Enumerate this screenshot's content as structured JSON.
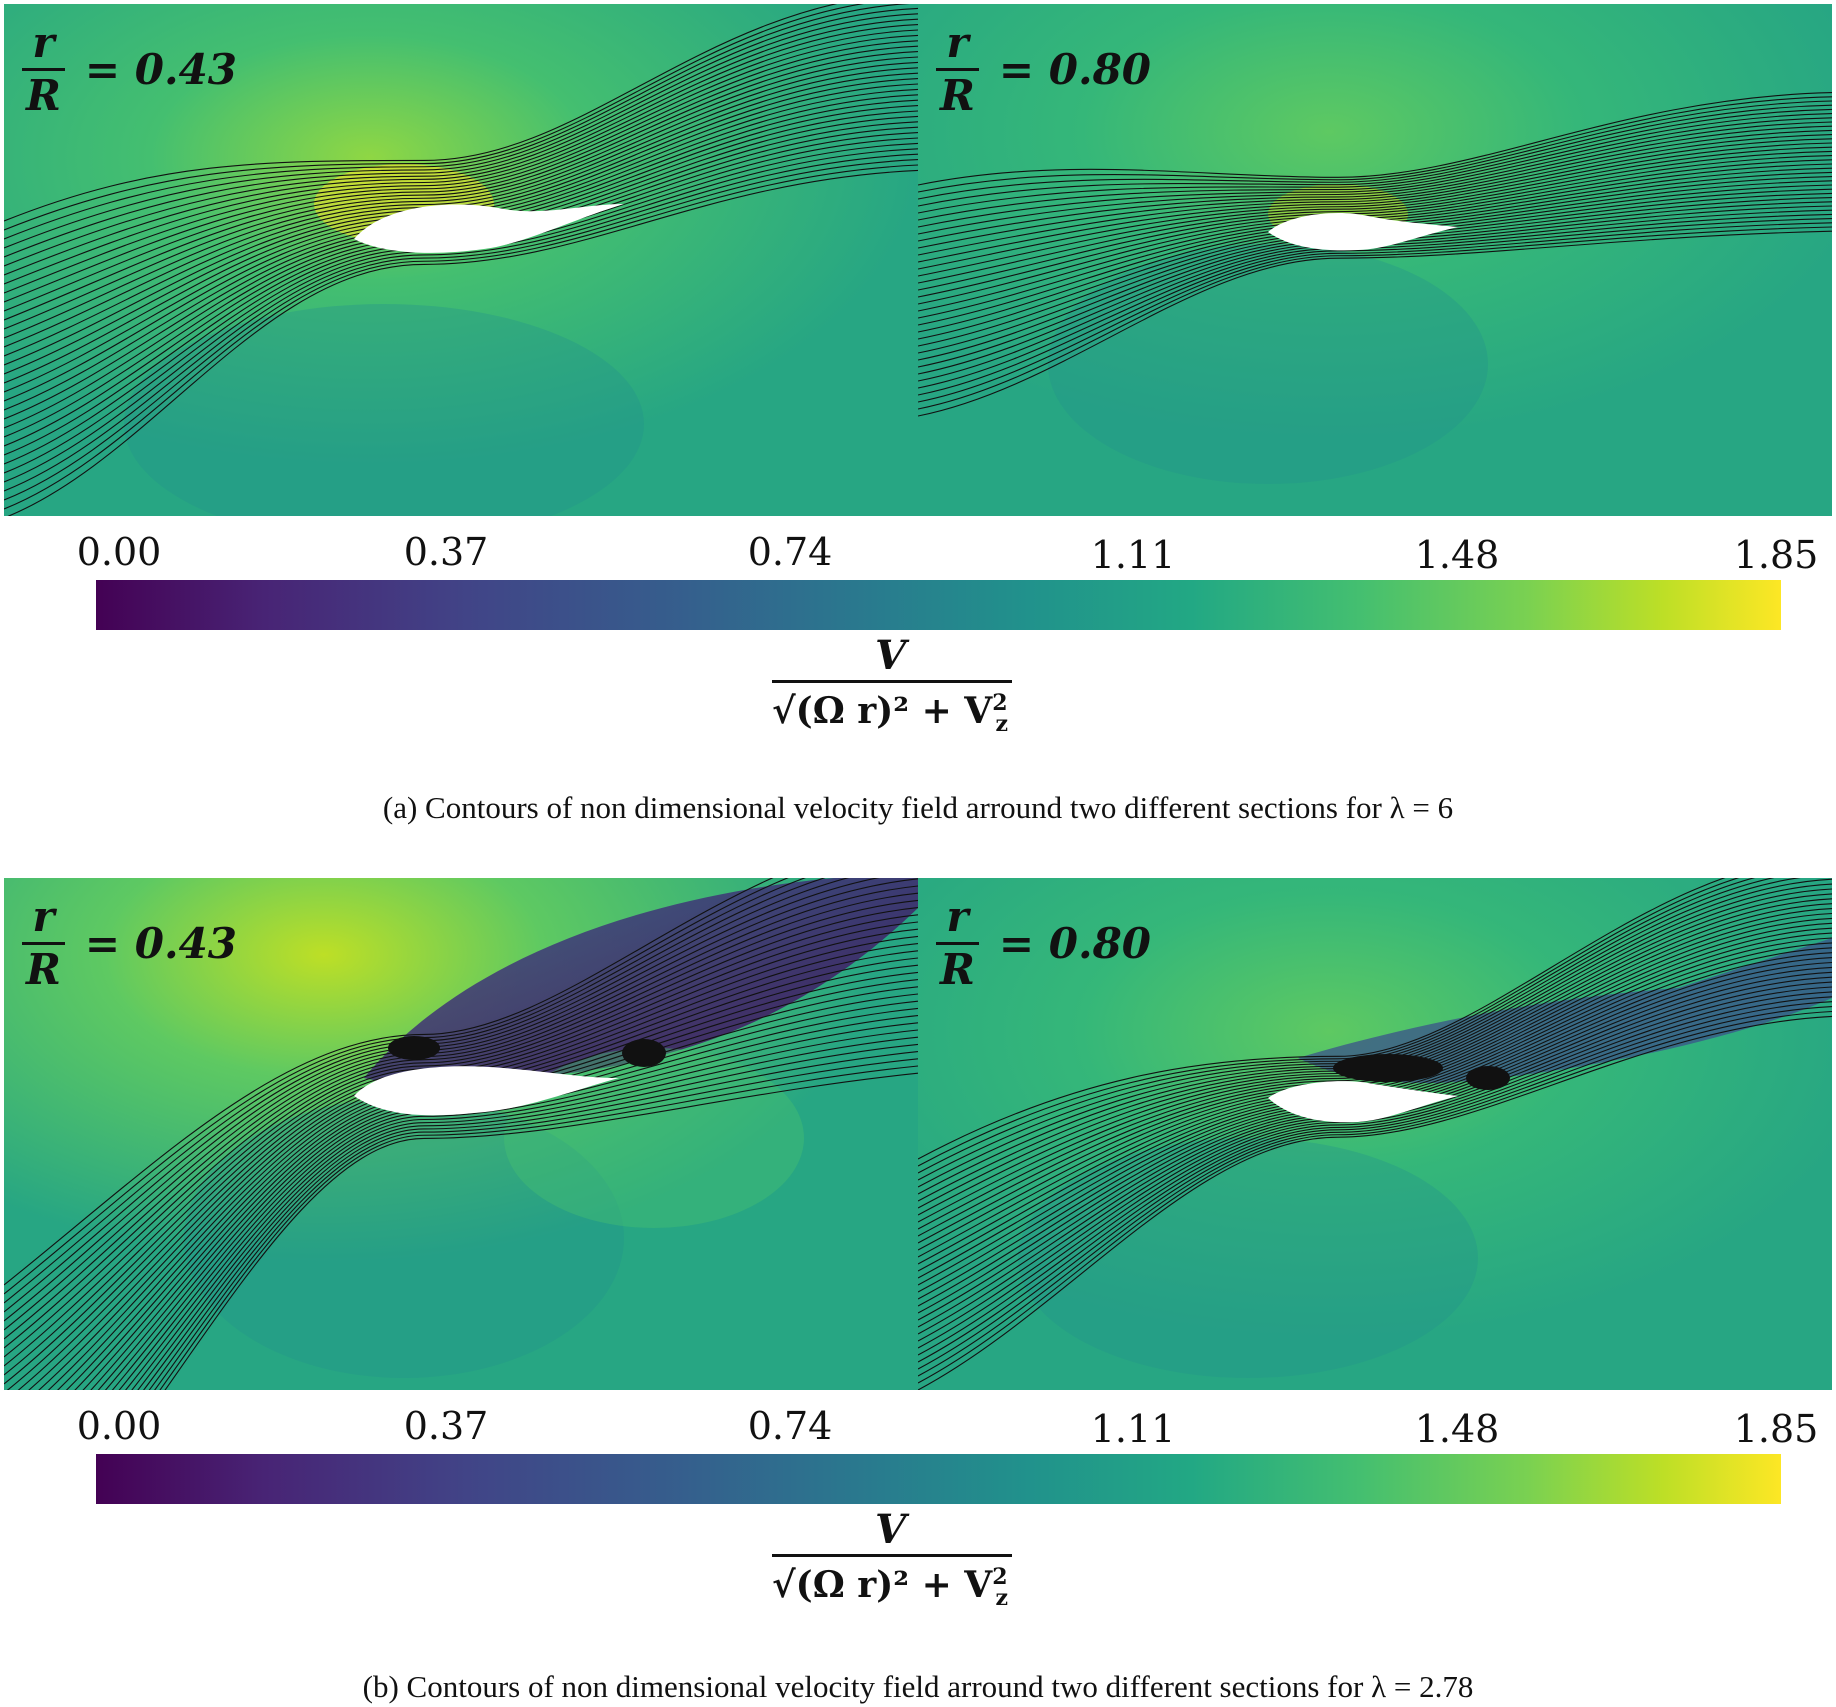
{
  "figures": [
    {
      "id": "a",
      "panels": [
        {
          "label_num": "r",
          "label_den": "R",
          "label_value": "= 0.43"
        },
        {
          "label_num": "r",
          "label_den": "R",
          "label_value": "= 0.80"
        }
      ],
      "colorbar": {
        "ticks": [
          "0.00",
          "0.37",
          "0.74",
          "1.11",
          "1.48",
          "1.85"
        ],
        "label_num": "V",
        "label_den": "√(Ω r)² + V",
        "label_sub": "z",
        "label_sup": "2"
      },
      "caption": "(a)  Contours of non dimensional velocity field arround two different sections for λ = 6"
    },
    {
      "id": "b",
      "panels": [
        {
          "label_num": "r",
          "label_den": "R",
          "label_value": "= 0.43"
        },
        {
          "label_num": "r",
          "label_den": "R",
          "label_value": "= 0.80"
        }
      ],
      "colorbar": {
        "ticks": [
          "0.00",
          "0.37",
          "0.74",
          "1.11",
          "1.48",
          "1.85"
        ],
        "label_num": "V",
        "label_den": "√(Ω r)² + V",
        "label_sub": "z",
        "label_sup": "2"
      },
      "caption": "(b)  Contours of non dimensional velocity field arround two different sections for λ = 2.78"
    }
  ],
  "colors": {
    "field_base": "#27a683",
    "field_high": "#fde725",
    "field_low": "#440154",
    "streamline": "#111111"
  }
}
